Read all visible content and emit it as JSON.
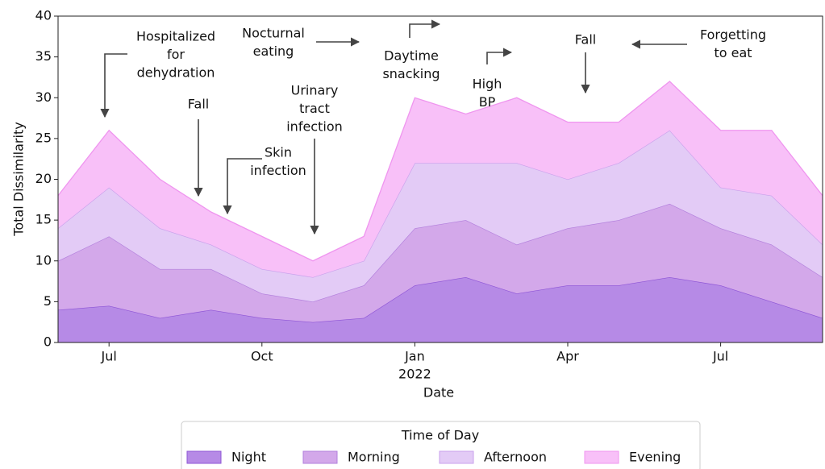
{
  "chart_data": {
    "type": "stacked_area",
    "x": [
      "2021-06",
      "2021-07",
      "2021-08",
      "2021-09",
      "2021-10",
      "2021-11",
      "2021-12",
      "2022-01",
      "2022-02",
      "2022-03",
      "2022-04",
      "2022-05",
      "2022-06",
      "2022-07",
      "2022-08",
      "2022-09"
    ],
    "series": [
      {
        "name": "Night",
        "color": "#b68ae6",
        "line": "#8e55d6",
        "values": [
          4,
          4.5,
          3,
          4,
          3,
          2.5,
          3,
          7,
          8,
          6,
          7,
          7,
          8,
          7,
          5,
          3
        ]
      },
      {
        "name": "Morning",
        "color": "#d3a8ea",
        "line": "#b27fdc",
        "values": [
          6,
          8.5,
          6,
          5,
          3,
          2.5,
          4,
          7,
          7,
          6,
          7,
          8,
          9,
          7,
          7,
          5
        ]
      },
      {
        "name": "Afternoon",
        "color": "#e3cbf6",
        "line": "#c9a1ec",
        "values": [
          4,
          6,
          5,
          3,
          3,
          3,
          3,
          8,
          7,
          10,
          6,
          7,
          9,
          5,
          6,
          4
        ]
      },
      {
        "name": "Evening",
        "color": "#f8c0f8",
        "line": "#ef95ef",
        "values": [
          4,
          7,
          6,
          4,
          4,
          2,
          3,
          8,
          6,
          8,
          7,
          5,
          6,
          7,
          8,
          6
        ]
      }
    ],
    "xlim": [
      "2021-06",
      "2022-09"
    ],
    "xticks": [
      {
        "value": "2021-07",
        "label": [
          "Jul"
        ]
      },
      {
        "value": "2021-10",
        "label": [
          "Oct"
        ]
      },
      {
        "value": "2022-01",
        "label": [
          "Jan",
          "2022"
        ]
      },
      {
        "value": "2022-04",
        "label": [
          "Apr"
        ]
      },
      {
        "value": "2022-07",
        "label": [
          "Jul"
        ]
      }
    ],
    "ylim": [
      0,
      40
    ],
    "yticks": [
      0,
      5,
      10,
      15,
      20,
      25,
      30,
      35,
      40
    ],
    "xlabel": "Date",
    "ylabel": "Total Dissimilarity",
    "legend_title": "Time of Day",
    "annotations": [
      [
        "Hospitalized",
        "for",
        "dehydration"
      ],
      [
        "Fall"
      ],
      [
        "Skin",
        "infection"
      ],
      [
        "Urinary",
        "tract",
        "infection"
      ],
      [
        "Nocturnal",
        "eating"
      ],
      [
        "Daytime",
        "snacking"
      ],
      [
        "High",
        "BP"
      ],
      [
        "Fall"
      ],
      [
        "Forgetting",
        "to eat"
      ]
    ]
  }
}
